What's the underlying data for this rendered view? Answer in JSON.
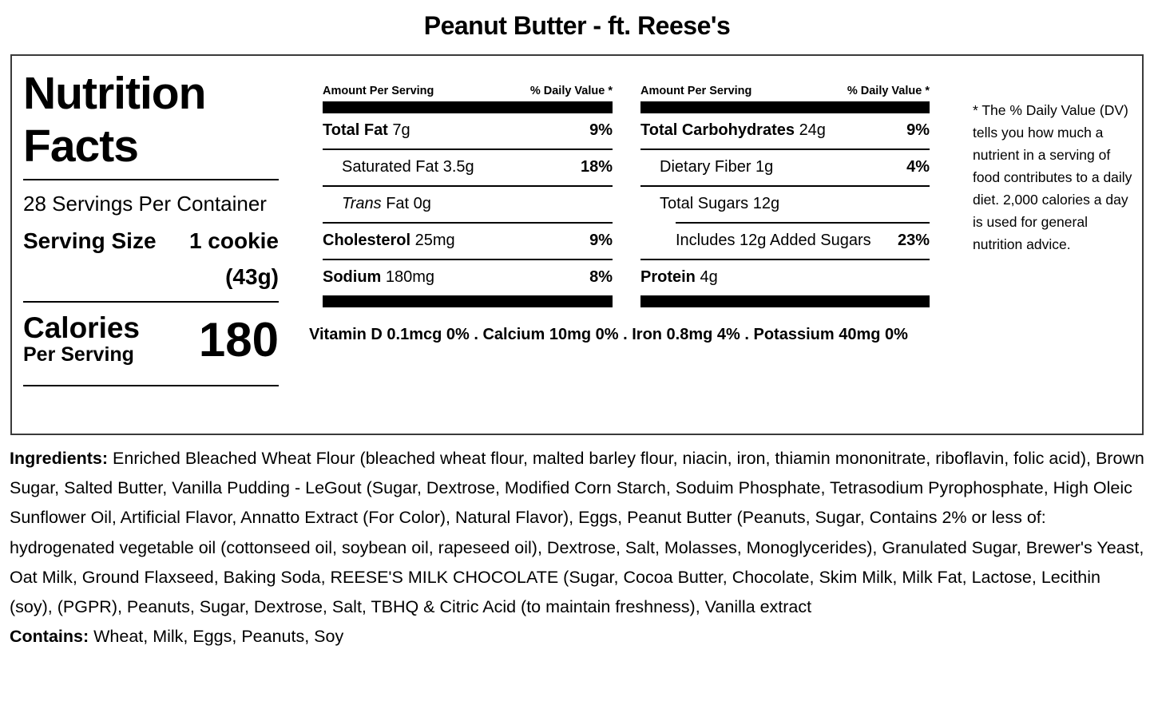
{
  "title": "Peanut Butter - ft. Reese's",
  "label": {
    "heading": "Nutrition Facts",
    "servings_per_container": "28 Servings Per Container",
    "serving_size": {
      "label": "Serving Size",
      "value": "1 cookie (43g)"
    },
    "calories": {
      "label": "Calories",
      "sublabel": "Per Serving",
      "value": "180"
    },
    "table_header": {
      "left": "Amount Per Serving",
      "right": "% Daily Value *"
    },
    "fat_column": {
      "rows": [
        {
          "lead": "Total Fat",
          "rest": "7g",
          "dv": "9%"
        },
        {
          "rest": "Saturated Fat 3.5g",
          "dv": "18%"
        },
        {
          "lead_italic": "Trans",
          "rest": "Fat 0g",
          "dv": ""
        },
        {
          "lead": "Cholesterol",
          "rest": "25mg",
          "dv": "9%"
        },
        {
          "lead": "Sodium",
          "rest": "180mg",
          "dv": "8%"
        }
      ]
    },
    "carb_column": {
      "rows": [
        {
          "lead": "Total Carbohydrates",
          "rest": "24g",
          "dv": "9%"
        },
        {
          "rest": "Dietary Fiber 1g",
          "dv": "4%"
        },
        {
          "rest": "Total Sugars 12g",
          "dv": ""
        },
        {
          "rest": "Includes 12g Added Sugars",
          "dv": "23%"
        },
        {
          "lead": "Protein",
          "rest": "4g",
          "dv": ""
        }
      ]
    },
    "micronutrients": "Vitamin D 0.1mcg 0% . Calcium 10mg 0% . Iron 0.8mg 4% . Potassium 40mg 0%",
    "footnote": "* The % Daily Value (DV) tells you how much a nutrient in a serving of food contributes to a daily diet. 2,000 calories a day is used for general nutrition advice."
  },
  "ingredients": {
    "label": "Ingredients:",
    "text": "Enriched Bleached Wheat Flour (bleached wheat flour, malted barley flour, niacin, iron, thiamin mononitrate, riboflavin, folic acid), Brown Sugar, Salted Butter, Vanilla Pudding - LeGout (Sugar, Dextrose, Modified Corn Starch, Soduim Phosphate, Tetrasodium Pyrophosphate, High Oleic Sunflower Oil, Artificial Flavor, Annatto Extract (For Color), Natural Flavor), Eggs, Peanut Butter (Peanuts, Sugar, Contains 2% or less of: hydrogenated vegetable oil (cottonseed oil, soybean oil, rapeseed oil), Dextrose, Salt, Molasses, Monoglycerides), Granulated Sugar, Brewer's Yeast, Oat Milk, Ground Flaxseed, Baking Soda, REESE'S MILK CHOCOLATE (Sugar, Cocoa Butter, Chocolate, Skim Milk, Milk Fat, Lactose, Lecithin (soy), (PGPR), Peanuts, Sugar, Dextrose, Salt, TBHQ & Citric Acid (to maintain freshness), Vanilla extract"
  },
  "contains": {
    "label": "Contains:",
    "text": "Wheat, Milk, Eggs, Peanuts, Soy"
  },
  "colors": {
    "text": "#000000",
    "border": "#3a3a3a",
    "background": "#ffffff"
  }
}
